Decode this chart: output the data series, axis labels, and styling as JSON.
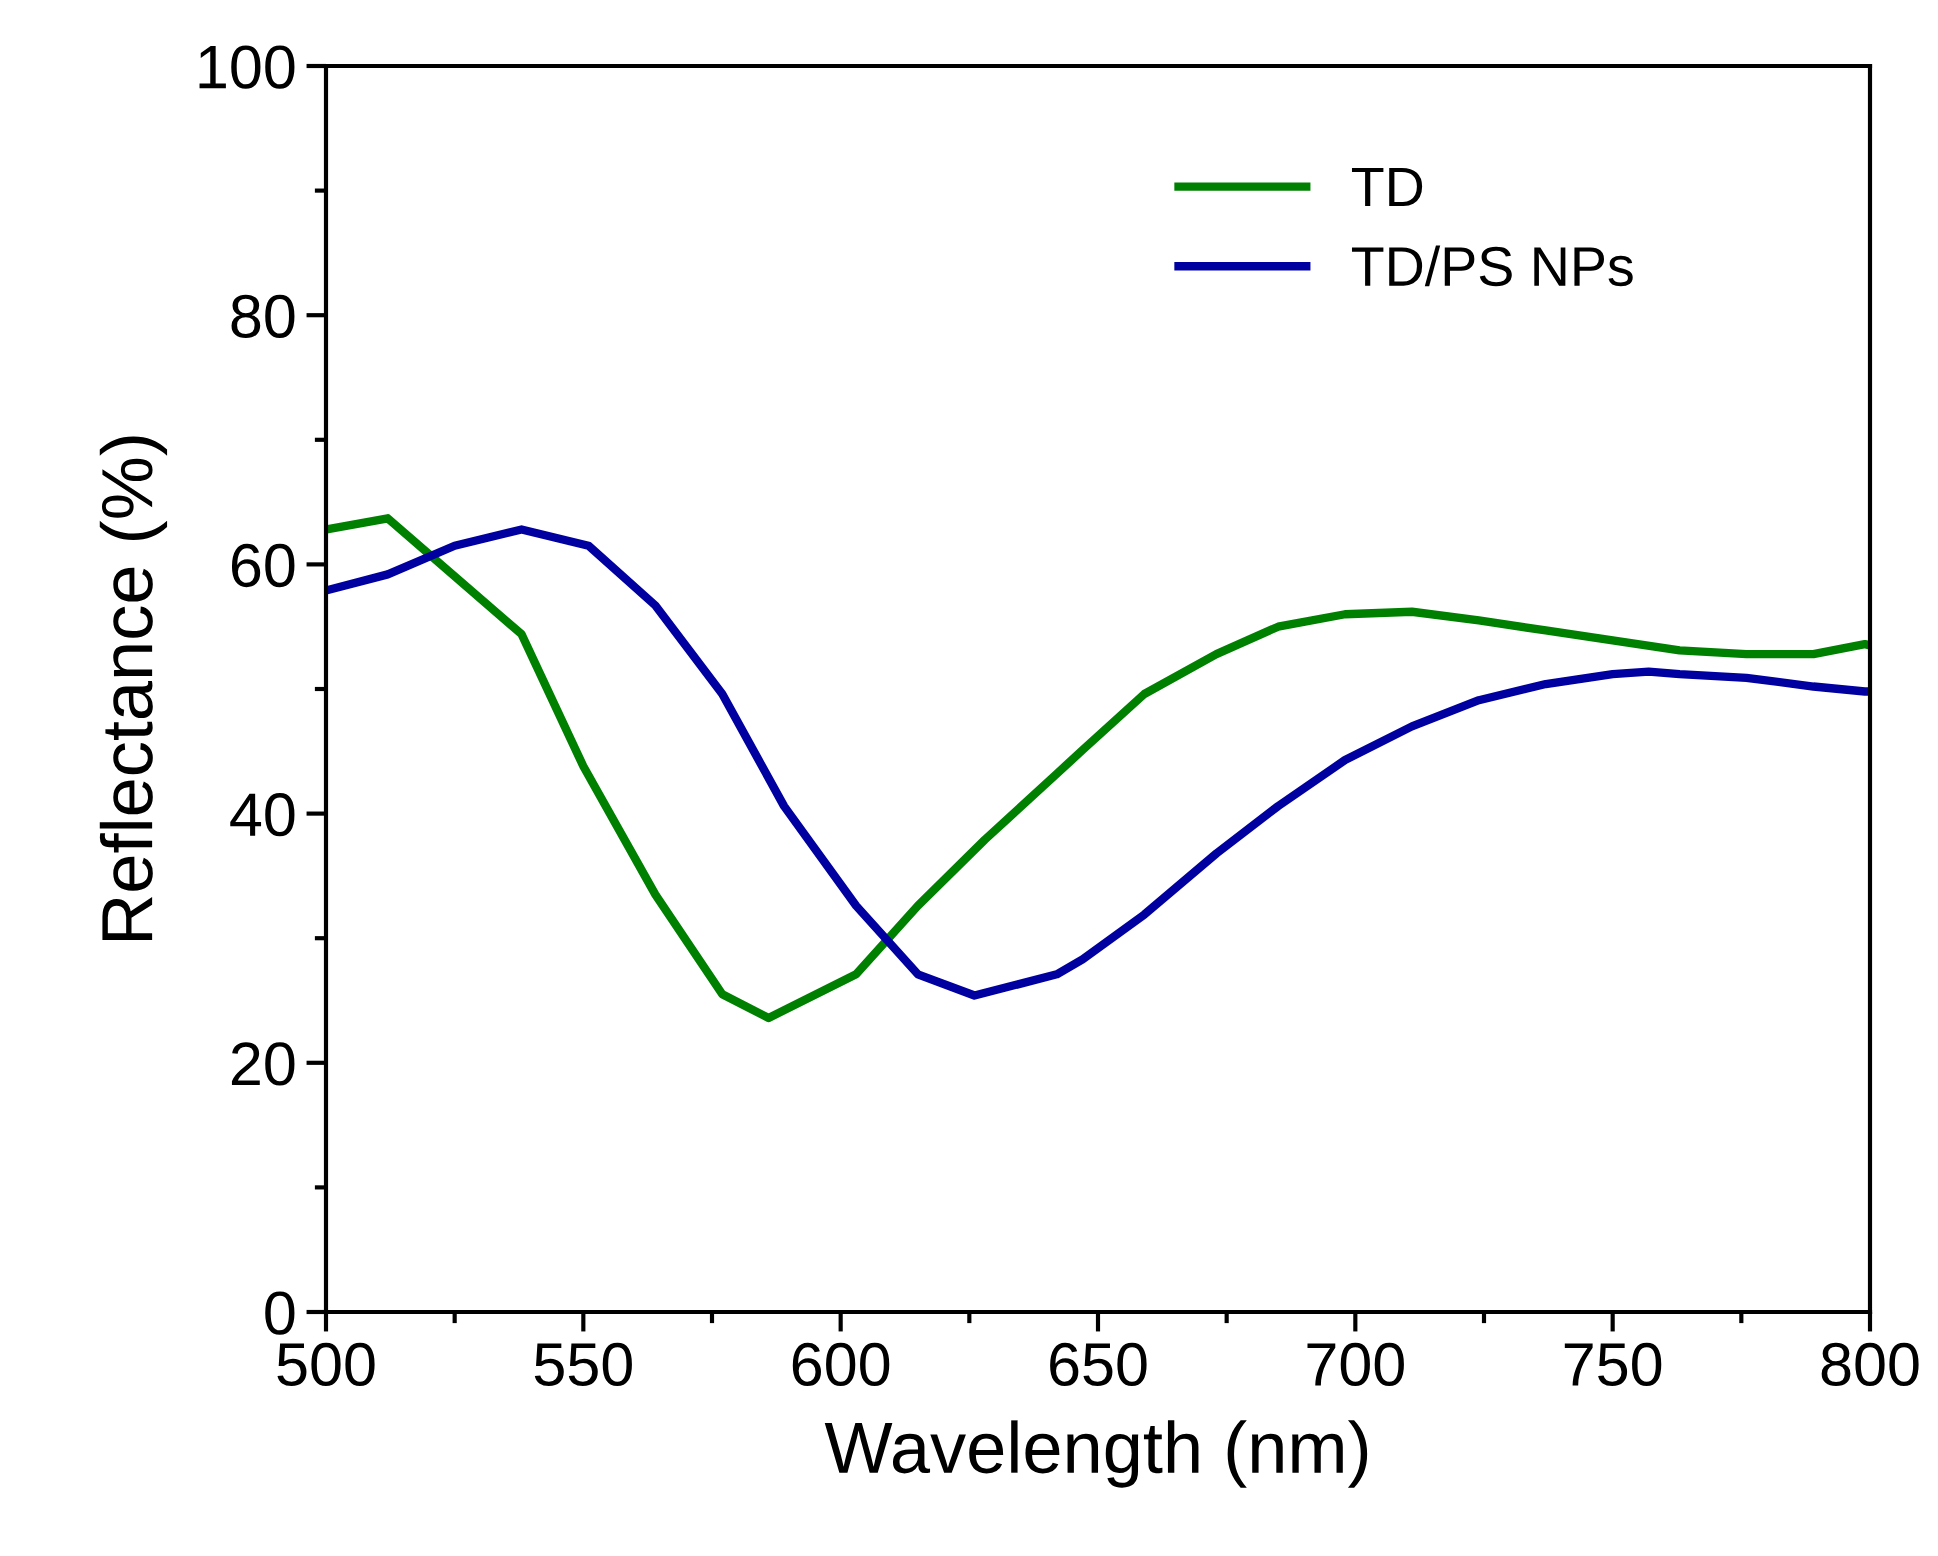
{
  "chart_data": {
    "type": "line",
    "xlabel": "Wavelength (nm)",
    "ylabel": "Reflectance (%)",
    "xlim": [
      500,
      800
    ],
    "xticks": [
      500,
      550,
      600,
      650,
      700,
      750,
      800
    ],
    "ylim": [
      0,
      100
    ],
    "yticks": [
      0,
      20,
      40,
      60,
      80,
      100
    ],
    "grid": false,
    "legend": "top right",
    "marker": "none",
    "line_style": "solid",
    "series": [
      {
        "name": "TD",
        "color": "#008000",
        "x": [
          500,
          512,
          538,
          550,
          564,
          577,
          586,
          603,
          615,
          628,
          642,
          647,
          659,
          673,
          685,
          698,
          711,
          724,
          737,
          750,
          763,
          776,
          789,
          799,
          800
        ],
        "values": [
          62.8,
          63.7,
          54.4,
          43.8,
          33.5,
          25.5,
          23.6,
          27.1,
          32.6,
          37.9,
          43.2,
          45.1,
          49.6,
          52.8,
          55.0,
          56.0,
          56.2,
          55.5,
          54.7,
          53.9,
          53.1,
          52.8,
          52.8,
          53.6,
          53.5
        ]
      },
      {
        "name": "TD/PS NPs",
        "color": "#0000a0",
        "x": [
          500,
          512,
          525,
          538,
          551,
          564,
          577,
          589,
          603,
          615,
          626,
          642,
          647,
          659,
          673,
          685,
          698,
          711,
          724,
          737,
          750,
          757,
          763,
          776,
          789,
          799,
          800
        ],
        "values": [
          57.9,
          59.2,
          61.5,
          62.8,
          61.5,
          56.7,
          49.6,
          40.6,
          32.6,
          27.1,
          25.4,
          27.1,
          28.3,
          31.9,
          36.8,
          40.6,
          44.3,
          47.0,
          49.1,
          50.4,
          51.2,
          51.4,
          51.2,
          50.9,
          50.2,
          49.8,
          49.8
        ]
      }
    ]
  }
}
